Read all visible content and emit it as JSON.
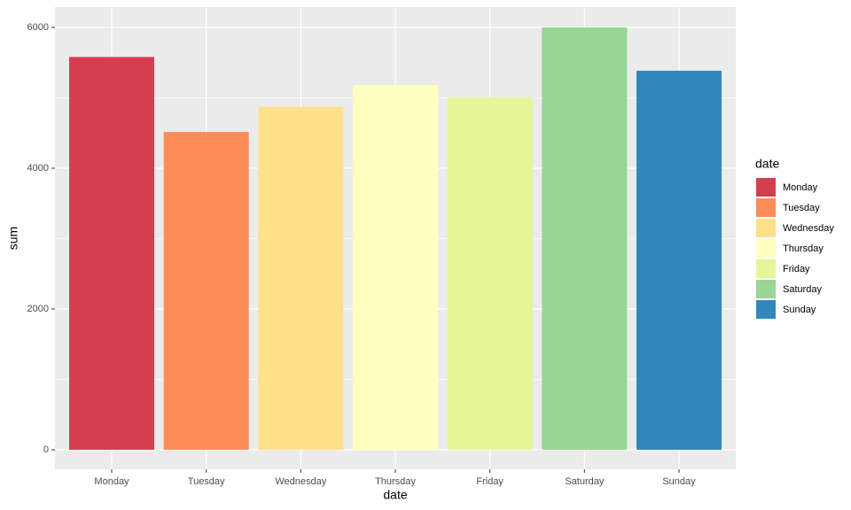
{
  "chart_data": {
    "type": "bar",
    "categories": [
      "Monday",
      "Tuesday",
      "Wednesday",
      "Thursday",
      "Friday",
      "Saturday",
      "Sunday"
    ],
    "values": [
      5580,
      4515,
      4870,
      5180,
      5005,
      6000,
      5385
    ],
    "colors": [
      "#d53e4f",
      "#fc8d59",
      "#fee08b",
      "#ffffbf",
      "#e6f598",
      "#99d594",
      "#3288bd"
    ],
    "xlabel": "date",
    "ylabel": "sum",
    "legend_title": "date",
    "ylim": [
      -277,
      6289
    ],
    "yticks": [
      0,
      2000,
      4000,
      6000
    ],
    "y_minor_ticks": [
      1000,
      3000,
      5000
    ],
    "grid": true,
    "legend": "right"
  }
}
